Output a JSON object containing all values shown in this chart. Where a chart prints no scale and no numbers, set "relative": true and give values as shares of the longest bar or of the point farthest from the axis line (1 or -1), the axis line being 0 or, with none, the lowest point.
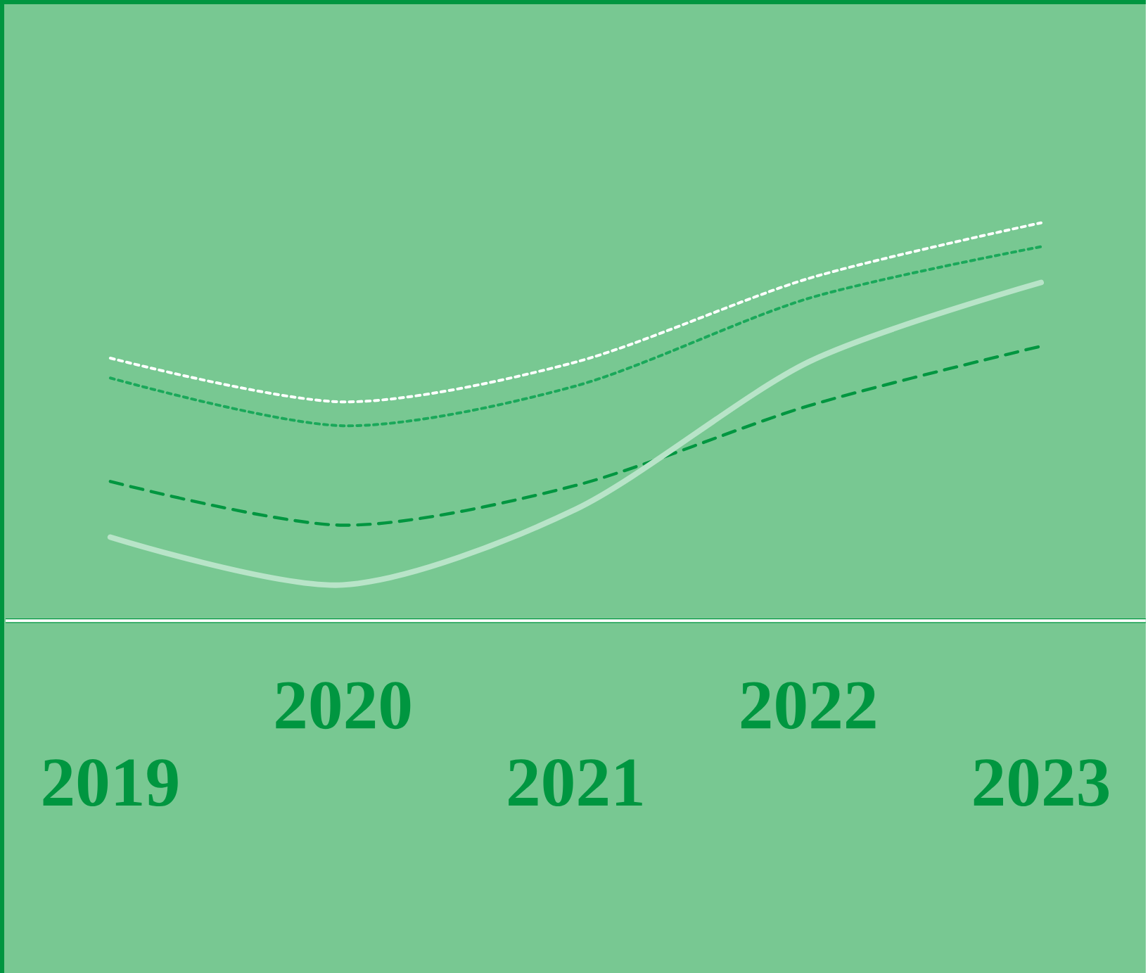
{
  "chart_data": {
    "type": "line",
    "relative": true,
    "categories": [
      "2019",
      "2020",
      "2021",
      "2022",
      "2023"
    ],
    "series": [
      {
        "color": "#ffffff",
        "line_style": "dotted",
        "values": [
          0.66,
          0.55,
          0.65,
          0.86,
          1
        ]
      },
      {
        "color": "#1aa85a",
        "line_style": "dotted",
        "values": [
          0.61,
          0.49,
          0.59,
          0.81,
          0.94
        ]
      },
      {
        "color": "#009640",
        "line_style": "dashed",
        "values": [
          0.35,
          0.24,
          0.34,
          0.54,
          0.69
        ]
      },
      {
        "color": "#b8e4c8",
        "line_style": "solid",
        "values": [
          0.21,
          0.09,
          0.28,
          0.65,
          0.85
        ]
      }
    ]
  }
}
